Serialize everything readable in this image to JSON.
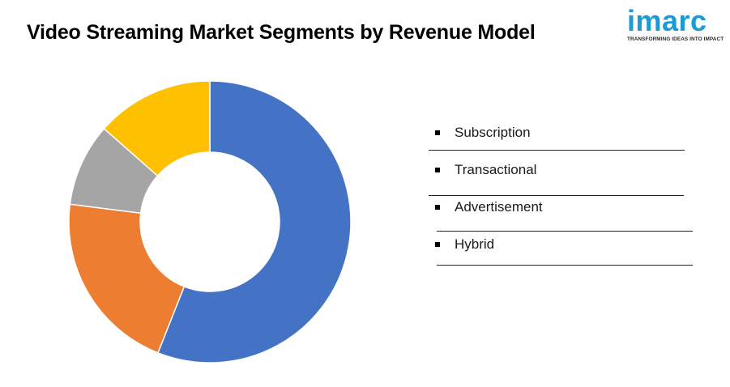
{
  "title": "Video Streaming Market Segments by Revenue Model",
  "logo": {
    "wordmark": "imarc",
    "tagline": "TRANSFORMING IDEAS INTO IMPACT",
    "color": "#1a9ad6"
  },
  "chart_data": {
    "type": "pie",
    "variant": "donut",
    "title": "Video Streaming Market Segments by Revenue Model",
    "legend_position": "right",
    "categories": [
      "Subscription",
      "Transactional",
      "Advertisement",
      "Hybrid"
    ],
    "values": [
      56,
      21,
      9.5,
      13.5
    ],
    "colors": [
      "#4472c4",
      "#ed7d31",
      "#a5a5a5",
      "#ffc000"
    ],
    "legend_marker": "square"
  }
}
